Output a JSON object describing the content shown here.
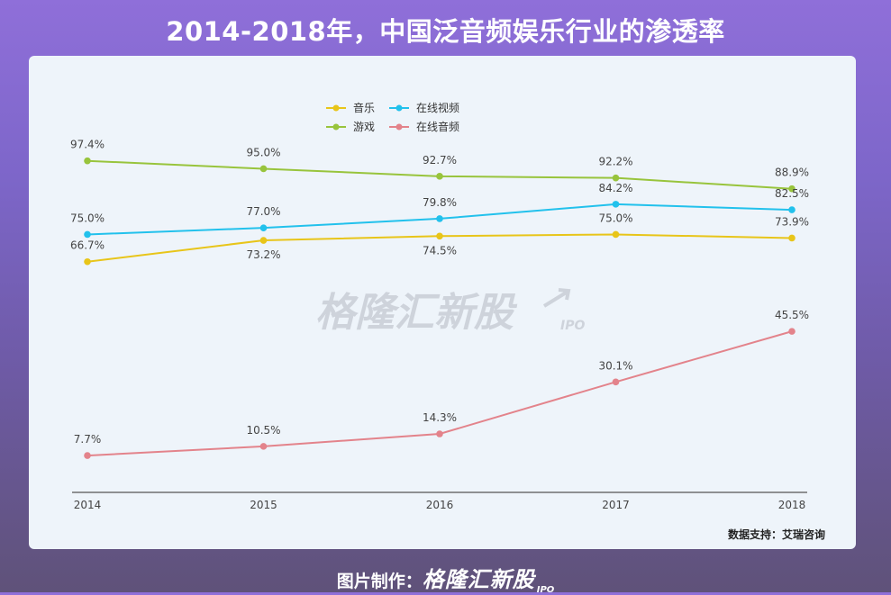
{
  "page": {
    "title": "2014-2018年，中国泛音频娱乐行业的渗透率"
  },
  "watermark": {
    "text": "格隆汇新股",
    "sub": "IPO"
  },
  "source_note": "数据支持：艾瑞咨询",
  "footer": {
    "label": "图片制作：",
    "brand": "格隆汇新股",
    "brand_sub": "IPO"
  },
  "colors": {
    "music": "#e8c519",
    "games": "#98c43c",
    "video": "#22c1ec",
    "audio": "#e3838b",
    "axis": "#555555",
    "label": "#444444"
  },
  "chart_data": {
    "type": "line",
    "title": "2014-2018年，中国泛音频娱乐行业的渗透率",
    "xlabel": "",
    "ylabel": "",
    "categories": [
      "2014",
      "2015",
      "2016",
      "2017",
      "2018"
    ],
    "ylim": [
      0,
      100
    ],
    "grid": false,
    "legend": {
      "position": "top-left",
      "entries": [
        "音乐",
        "在线视频",
        "游戏",
        "在线音频"
      ]
    },
    "series": [
      {
        "key": "games",
        "name": "游戏",
        "values": [
          97.4,
          95.0,
          92.7,
          92.2,
          88.9
        ],
        "labels": [
          "97.4%",
          "95.0%",
          "92.7%",
          "92.2%",
          "88.9%"
        ]
      },
      {
        "key": "video",
        "name": "在线视频",
        "values": [
          75.0,
          77.0,
          79.8,
          84.2,
          82.5
        ],
        "labels": [
          "75.0%",
          "77.0%",
          "79.8%",
          "84.2%",
          "82.5%"
        ]
      },
      {
        "key": "music",
        "name": "音乐",
        "values": [
          66.7,
          73.2,
          74.5,
          75.0,
          73.9
        ],
        "labels": [
          "66.7%",
          "73.2%",
          "74.5%",
          "75.0%",
          "73.9%"
        ]
      },
      {
        "key": "audio",
        "name": "在线音频",
        "values": [
          7.7,
          10.5,
          14.3,
          30.1,
          45.5
        ],
        "labels": [
          "7.7%",
          "10.5%",
          "14.3%",
          "30.1%",
          "45.5%"
        ]
      }
    ]
  }
}
